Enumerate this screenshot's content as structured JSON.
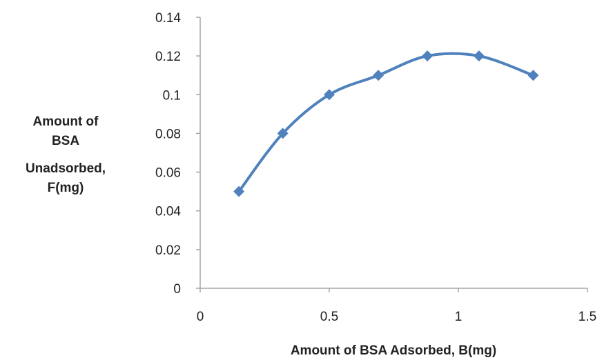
{
  "chart_data": {
    "type": "scatter",
    "title": "",
    "xlabel": "Amount of BSA Adsorbed, B(mg)",
    "ylabel_lines": [
      "Amount of",
      "BSA",
      "Unadsorbed,",
      "F(mg)"
    ],
    "xlim": [
      0,
      1.5
    ],
    "ylim": [
      0,
      0.14
    ],
    "x_ticks": [
      0,
      0.5,
      1,
      1.5
    ],
    "y_ticks": [
      0,
      0.02,
      0.04,
      0.06,
      0.08,
      0.1,
      0.12,
      0.14
    ],
    "x_tick_labels": [
      "0",
      "0.5",
      "1",
      "1.5"
    ],
    "y_tick_labels": [
      "0",
      "0.02",
      "0.04",
      "0.06",
      "0.08",
      "0.1",
      "0.12",
      "0.14"
    ],
    "grid": false,
    "legend": "none",
    "line_style": "smooth",
    "marker": "diamond",
    "series": [
      {
        "x": [
          0.15,
          0.32,
          0.5,
          0.69,
          0.88,
          1.08,
          1.29
        ],
        "y": [
          0.05,
          0.08,
          0.1,
          0.11,
          0.12,
          0.12,
          0.11
        ]
      }
    ],
    "colors": {
      "series": "#4F81BD",
      "axis": "#A6A6A6"
    }
  }
}
